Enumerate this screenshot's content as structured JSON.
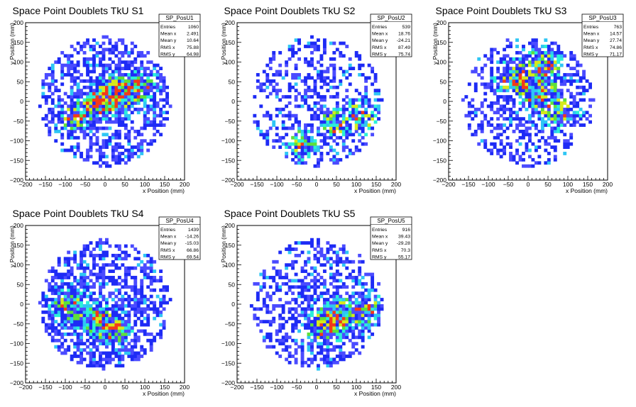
{
  "chart_data": [
    {
      "type": "heatmap",
      "title": "Space Point Doublets TkU S1",
      "xlabel": "x Position (mm)",
      "ylabel": "y Position (mm)",
      "xlim": [
        -200,
        200
      ],
      "ylim": [
        -200,
        200
      ],
      "xticks": [
        -200,
        -150,
        -100,
        -50,
        0,
        50,
        100,
        150,
        200
      ],
      "yticks": [
        -200,
        -150,
        -100,
        -50,
        0,
        50,
        100,
        150,
        200
      ],
      "stats": {
        "name": "SP_PosU1",
        "rows": [
          {
            "label": "Entries",
            "value": "1060"
          },
          {
            "label": "Mean x",
            "value": "2.491"
          },
          {
            "label": "Mean y",
            "value": "10.64"
          },
          {
            "label": "RMS x",
            "value": "75.88"
          },
          {
            "label": "RMS y",
            "value": "64.98"
          }
        ]
      },
      "hotspots": [
        {
          "x": 40,
          "y": 25,
          "s": 28
        },
        {
          "x": -20,
          "y": -10,
          "s": 26
        },
        {
          "x": -80,
          "y": -40,
          "s": 22
        },
        {
          "x": 90,
          "y": 40,
          "s": 22
        },
        {
          "x": 10,
          "y": 10,
          "s": 24
        }
      ]
    },
    {
      "type": "heatmap",
      "title": "Space Point Doublets TkU S2",
      "xlabel": "x Position (mm)",
      "ylabel": "y Position (mm)",
      "xlim": [
        -200,
        200
      ],
      "ylim": [
        -200,
        200
      ],
      "xticks": [
        -200,
        -150,
        -100,
        -50,
        0,
        50,
        100,
        150,
        200
      ],
      "yticks": [
        -200,
        -150,
        -100,
        -50,
        0,
        50,
        100,
        150,
        200
      ],
      "stats": {
        "name": "SP_PosU2",
        "rows": [
          {
            "label": "Entries",
            "value": "539"
          },
          {
            "label": "Mean x",
            "value": "18.76"
          },
          {
            "label": "Mean y",
            "value": "-24.21"
          },
          {
            "label": "RMS x",
            "value": "87.49"
          },
          {
            "label": "RMS y",
            "value": "75.74"
          }
        ]
      },
      "hotspots": [
        {
          "x": 110,
          "y": -40,
          "s": 28
        },
        {
          "x": -40,
          "y": -110,
          "s": 24
        },
        {
          "x": 40,
          "y": -60,
          "s": 24
        }
      ]
    },
    {
      "type": "heatmap",
      "title": "Space Point Doublets TkU S3",
      "xlabel": "x Position (mm)",
      "ylabel": "y Position (mm)",
      "xlim": [
        -200,
        200
      ],
      "ylim": [
        -200,
        200
      ],
      "xticks": [
        -200,
        -150,
        -100,
        -50,
        0,
        50,
        100,
        150,
        200
      ],
      "yticks": [
        -200,
        -150,
        -100,
        -50,
        0,
        50,
        100,
        150,
        200
      ],
      "stats": {
        "name": "SP_PosU3",
        "rows": [
          {
            "label": "Entries",
            "value": "763"
          },
          {
            "label": "Mean x",
            "value": "14.57"
          },
          {
            "label": "Mean y",
            "value": "27.74"
          },
          {
            "label": "RMS x",
            "value": "74.86"
          },
          {
            "label": "RMS y",
            "value": "71.17"
          }
        ]
      },
      "hotspots": [
        {
          "x": 40,
          "y": 90,
          "s": 30
        },
        {
          "x": 80,
          "y": -20,
          "s": 30
        },
        {
          "x": -40,
          "y": 60,
          "s": 28
        },
        {
          "x": 20,
          "y": 20,
          "s": 26
        }
      ]
    },
    {
      "type": "heatmap",
      "title": "Space Point Doublets TkU S4",
      "xlabel": "x Position (mm)",
      "ylabel": "y Position (mm)",
      "xlim": [
        -200,
        200
      ],
      "ylim": [
        -200,
        200
      ],
      "xticks": [
        -200,
        -150,
        -100,
        -50,
        0,
        50,
        100,
        150,
        200
      ],
      "yticks": [
        -200,
        -150,
        -100,
        -50,
        0,
        50,
        100,
        150,
        200
      ],
      "stats": {
        "name": "SP_PosU4",
        "rows": [
          {
            "label": "Entries",
            "value": "1439"
          },
          {
            "label": "Mean x",
            "value": "-14.26"
          },
          {
            "label": "Mean y",
            "value": "-15.03"
          },
          {
            "label": "RMS x",
            "value": "66.86"
          },
          {
            "label": "RMS y",
            "value": "69.54"
          }
        ]
      },
      "hotspots": [
        {
          "x": -30,
          "y": -40,
          "s": 24
        },
        {
          "x": -90,
          "y": 0,
          "s": 26
        },
        {
          "x": 20,
          "y": -60,
          "s": 26
        }
      ]
    },
    {
      "type": "heatmap",
      "title": "Space Point Doublets TkU S5",
      "xlabel": "x Position (mm)",
      "ylabel": "y Position (mm)",
      "xlim": [
        -200,
        200
      ],
      "ylim": [
        -200,
        200
      ],
      "xticks": [
        -200,
        -150,
        -100,
        -50,
        0,
        50,
        100,
        150,
        200
      ],
      "yticks": [
        -200,
        -150,
        -100,
        -50,
        0,
        50,
        100,
        150,
        200
      ],
      "stats": {
        "name": "SP_PosU5",
        "rows": [
          {
            "label": "Entries",
            "value": "916"
          },
          {
            "label": "Mean x",
            "value": "39.43"
          },
          {
            "label": "Mean y",
            "value": "-29.28"
          },
          {
            "label": "RMS x",
            "value": "70.3"
          },
          {
            "label": "RMS y",
            "value": "55.17"
          }
        ]
      },
      "hotspots": [
        {
          "x": 60,
          "y": -30,
          "s": 28
        },
        {
          "x": 130,
          "y": -10,
          "s": 24
        },
        {
          "x": 10,
          "y": -60,
          "s": 26
        }
      ]
    }
  ],
  "colors": {
    "palette": [
      "#1e2bf5",
      "#4b4bff",
      "#2fc6f4",
      "#2af0d8",
      "#5fe03a",
      "#d6e91c",
      "#f23a1a"
    ],
    "axis": "#000000",
    "background": "#ffffff"
  }
}
